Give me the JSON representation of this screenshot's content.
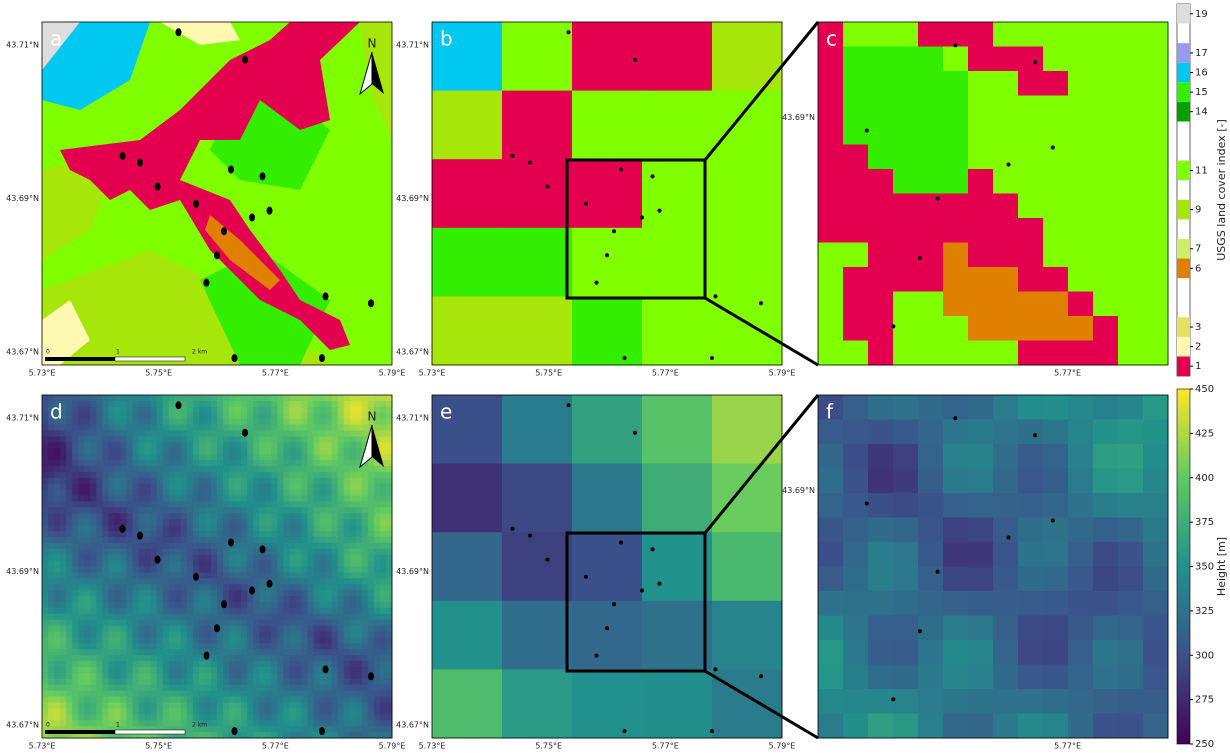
{
  "panels": [
    {
      "label": "a",
      "kind": "landcover",
      "xlim": [
        5.73,
        5.79
      ],
      "ylim": [
        43.6683,
        43.713
      ],
      "xticks": [
        {
          "value": 5.73,
          "label": "5.73°E"
        },
        {
          "value": 5.75,
          "label": "5.75°E"
        },
        {
          "value": 5.77,
          "label": "5.77°E"
        },
        {
          "value": 5.79,
          "label": "5.79°E"
        }
      ],
      "yticks": [
        {
          "value": 43.67,
          "label": "43.67°N"
        },
        {
          "value": 43.69,
          "label": "43.69°N"
        },
        {
          "value": 43.71,
          "label": "43.71°N"
        }
      ],
      "scalebar": [
        "0",
        "1",
        "2 km"
      ],
      "north": "N"
    },
    {
      "label": "b",
      "kind": "landcover",
      "xlim": [
        5.73,
        5.79
      ],
      "ylim": [
        43.6683,
        43.713
      ],
      "xticks": [
        {
          "value": 5.73,
          "label": "5.73°E"
        },
        {
          "value": 5.75,
          "label": "5.75°E"
        },
        {
          "value": 5.77,
          "label": "5.77°E"
        },
        {
          "value": 5.79,
          "label": "5.79°E"
        }
      ],
      "yticks": [
        {
          "value": 43.67,
          "label": "43.67°N"
        },
        {
          "value": 43.69,
          "label": "43.69°N"
        },
        {
          "value": 43.71,
          "label": "43.71°N"
        }
      ]
    },
    {
      "label": "c",
      "kind": "landcover",
      "xlim": [
        5.7531,
        5.7768
      ],
      "ylim": [
        43.677,
        43.695
      ],
      "xticks": [
        {
          "value": 5.77,
          "label": "5.77°E"
        }
      ],
      "yticks": [
        {
          "value": 43.69,
          "label": "43.69°N"
        }
      ]
    },
    {
      "label": "d",
      "kind": "height",
      "xlim": [
        5.73,
        5.79
      ],
      "ylim": [
        43.6683,
        43.713
      ],
      "xticks": [
        {
          "value": 5.73,
          "label": "5.73°E"
        },
        {
          "value": 5.75,
          "label": "5.75°E"
        },
        {
          "value": 5.77,
          "label": "5.77°E"
        },
        {
          "value": 5.79,
          "label": "5.79°E"
        }
      ],
      "yticks": [
        {
          "value": 43.67,
          "label": "43.67°N"
        },
        {
          "value": 43.69,
          "label": "43.69°N"
        },
        {
          "value": 43.71,
          "label": "43.71°N"
        }
      ],
      "scalebar": [
        "0",
        "1",
        "2 km"
      ],
      "north": "N"
    },
    {
      "label": "e",
      "kind": "height",
      "xlim": [
        5.73,
        5.79
      ],
      "ylim": [
        43.6683,
        43.713
      ],
      "xticks": [
        {
          "value": 5.73,
          "label": "5.73°E"
        },
        {
          "value": 5.75,
          "label": "5.75°E"
        },
        {
          "value": 5.77,
          "label": "5.77°E"
        },
        {
          "value": 5.79,
          "label": "5.79°E"
        }
      ],
      "yticks": [
        {
          "value": 43.67,
          "label": "43.67°N"
        },
        {
          "value": 43.69,
          "label": "43.69°N"
        },
        {
          "value": 43.71,
          "label": "43.71°N"
        }
      ]
    },
    {
      "label": "f",
      "kind": "height",
      "xlim": [
        5.7531,
        5.7768
      ],
      "ylim": [
        43.677,
        43.695
      ],
      "xticks": [
        {
          "value": 5.77,
          "label": "5.77°E"
        }
      ],
      "yticks": [
        {
          "value": 43.69,
          "label": "43.69°N"
        }
      ]
    }
  ],
  "colorbars": [
    {
      "label": "USGS land cover index [-]",
      "vlim": [
        0.5,
        19.5
      ],
      "ticks": [
        1,
        2,
        3,
        6,
        7,
        9,
        11,
        14,
        15,
        16,
        17,
        19
      ],
      "colors": [
        "#e3004e",
        "#fff8b0",
        "#e6e060",
        "#e08000",
        "#ccee66",
        "#a6e60a",
        "#80ff00",
        "#00a000",
        "#33ee00",
        "#00c8f0",
        "#9999ee",
        "#dddddd"
      ]
    },
    {
      "label": "Height [m]",
      "vlim": [
        250,
        450
      ],
      "ticks": [
        250,
        275,
        300,
        325,
        350,
        375,
        400,
        425,
        450
      ],
      "colors": [
        "#440154",
        "#3b528b",
        "#21918c",
        "#5ec962",
        "#fde725"
      ]
    }
  ]
}
